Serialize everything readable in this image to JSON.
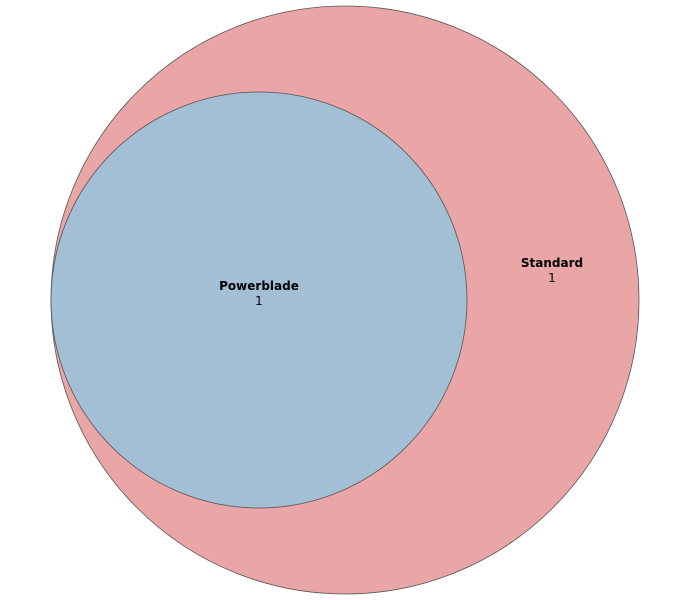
{
  "diagram": {
    "type": "venn",
    "sets": [
      {
        "name": "Standard",
        "count": "1",
        "color": "#eaa5a6",
        "stroke": "#555555"
      },
      {
        "name": "Powerblade",
        "count": "1",
        "color": "#a3bfd6",
        "stroke": "#555555"
      }
    ],
    "relationship": "Powerblade is a subset of Standard"
  }
}
